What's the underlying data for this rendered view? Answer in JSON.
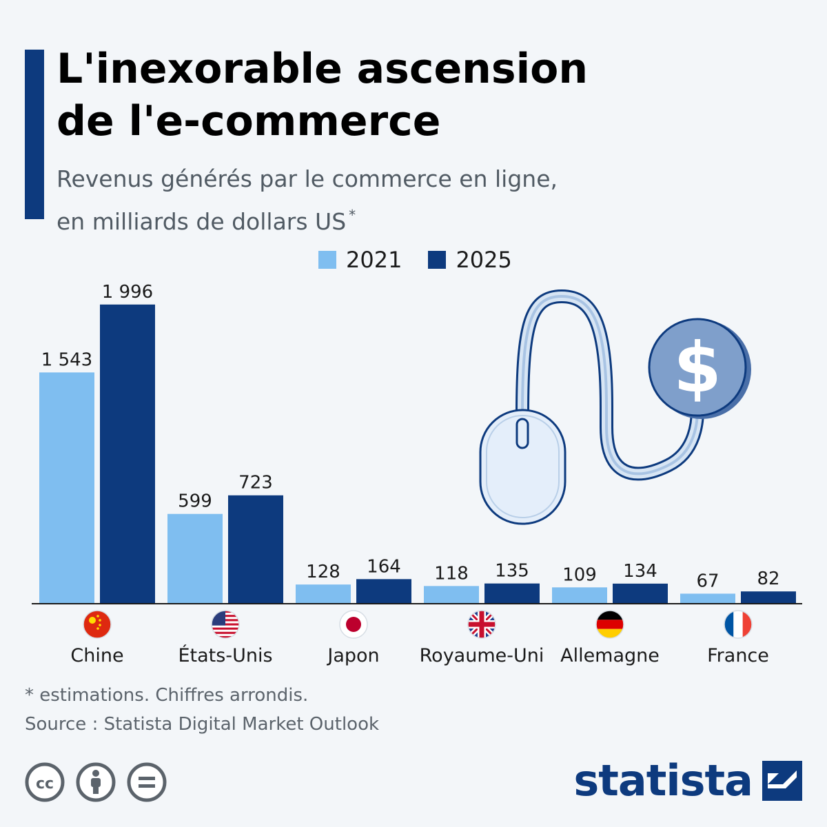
{
  "header": {
    "title_line1": "L'inexorable ascension",
    "title_line2": "de l'e-commerce",
    "subtitle_line1": "Revenus générés par le commerce en ligne,",
    "subtitle_line2": "en milliards de dollars US",
    "subtitle_mark": "*"
  },
  "colors": {
    "accent": "#0d3a7e",
    "series_2021": "#7fbef0",
    "series_2025": "#0d3a7e"
  },
  "chart_data": {
    "type": "bar",
    "categories": [
      "Chine",
      "États-Unis",
      "Japon",
      "Royaume-Uni",
      "Allemagne",
      "France"
    ],
    "series": [
      {
        "name": "2021",
        "values": [
          1543,
          599,
          128,
          118,
          109,
          67
        ]
      },
      {
        "name": "2025",
        "values": [
          1996,
          723,
          164,
          135,
          134,
          82
        ]
      }
    ],
    "value_labels": [
      [
        "1 543",
        "599",
        "128",
        "118",
        "109",
        "67"
      ],
      [
        "1 996",
        "723",
        "164",
        "135",
        "134",
        "82"
      ]
    ],
    "ylim": [
      0,
      2000
    ],
    "grid": false,
    "legend": "top-center",
    "flag_icons": [
      "china-flag-icon",
      "usa-flag-icon",
      "japan-flag-icon",
      "uk-flag-icon",
      "germany-flag-icon",
      "france-flag-icon"
    ]
  },
  "footer": {
    "note": "* estimations. Chiffres arrondis.",
    "source": "Source : Statista Digital Market Outlook",
    "brand": "statista",
    "license_icons": [
      "cc-icon",
      "attribution-icon",
      "no-derivatives-icon"
    ]
  },
  "illustration": {
    "icon": "mouse-dollar-icon",
    "coin_symbol": "$"
  }
}
